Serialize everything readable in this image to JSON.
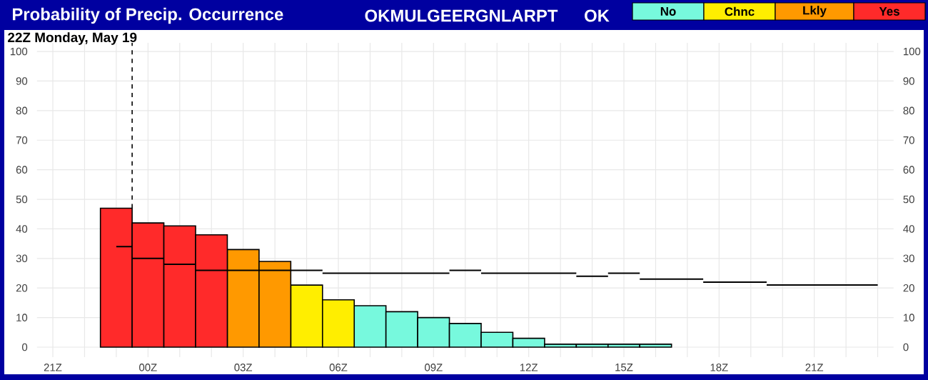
{
  "chart_data": {
    "type": "bar",
    "title": "Probability of Precip. Occurrence",
    "subtitle": "22Z Monday, May 19",
    "annotations": [
      "OKMULGEERGNLARPT",
      "OK"
    ],
    "categories": [
      "21Z",
      null,
      null,
      "00Z",
      null,
      null,
      "03Z",
      null,
      null,
      "06Z",
      null,
      null,
      "09Z",
      null,
      null,
      "12Z",
      null,
      null,
      "15Z",
      null,
      null,
      "18Z",
      null,
      null,
      "21Z",
      null,
      null
    ],
    "series": [
      {
        "name": "No",
        "color": "#77f9dd",
        "values": [
          null,
          null,
          null,
          null,
          null,
          null,
          null,
          null,
          null,
          null,
          14,
          12,
          10,
          8,
          5,
          3,
          1,
          1,
          1,
          1,
          null,
          null,
          null,
          null,
          null,
          null,
          null
        ]
      },
      {
        "name": "Chnc",
        "color": "#ffee00",
        "values": [
          null,
          null,
          null,
          null,
          null,
          null,
          null,
          null,
          21,
          16,
          null,
          null,
          null,
          null,
          null,
          null,
          null,
          null,
          null,
          null,
          null,
          null,
          null,
          null,
          null,
          null,
          null
        ]
      },
      {
        "name": "Lkly",
        "color": "#ff9900",
        "values": [
          null,
          null,
          null,
          null,
          null,
          null,
          33,
          29,
          null,
          null,
          null,
          null,
          null,
          null,
          null,
          null,
          null,
          null,
          null,
          null,
          null,
          null,
          null,
          null,
          null,
          null,
          null
        ]
      },
      {
        "name": "Yes",
        "color": "#ff2a2a",
        "values": [
          null,
          null,
          47,
          42,
          41,
          38,
          null,
          null,
          null,
          null,
          null,
          null,
          null,
          null,
          null,
          null,
          null,
          null,
          null,
          null,
          null,
          null,
          null,
          null,
          null,
          null,
          null
        ]
      },
      {
        "type": "step",
        "color": "#000000",
        "values": [
          null,
          null,
          34,
          30,
          28,
          26,
          26,
          26,
          26,
          25,
          25,
          25,
          25,
          26,
          25,
          25,
          25,
          24,
          25,
          23,
          23,
          22,
          22,
          21,
          21,
          21,
          21
        ]
      }
    ],
    "ylim": [
      -3.4,
      102.9
    ],
    "yticks": [
      0,
      10,
      20,
      30,
      40,
      50,
      60,
      70,
      80,
      90,
      100
    ],
    "y2lim": [
      -3.4,
      102.9
    ],
    "y2ticks": [
      0,
      10,
      20,
      30,
      40,
      50,
      60,
      70,
      80,
      90,
      100
    ],
    "grid": true,
    "legend": "top right"
  }
}
